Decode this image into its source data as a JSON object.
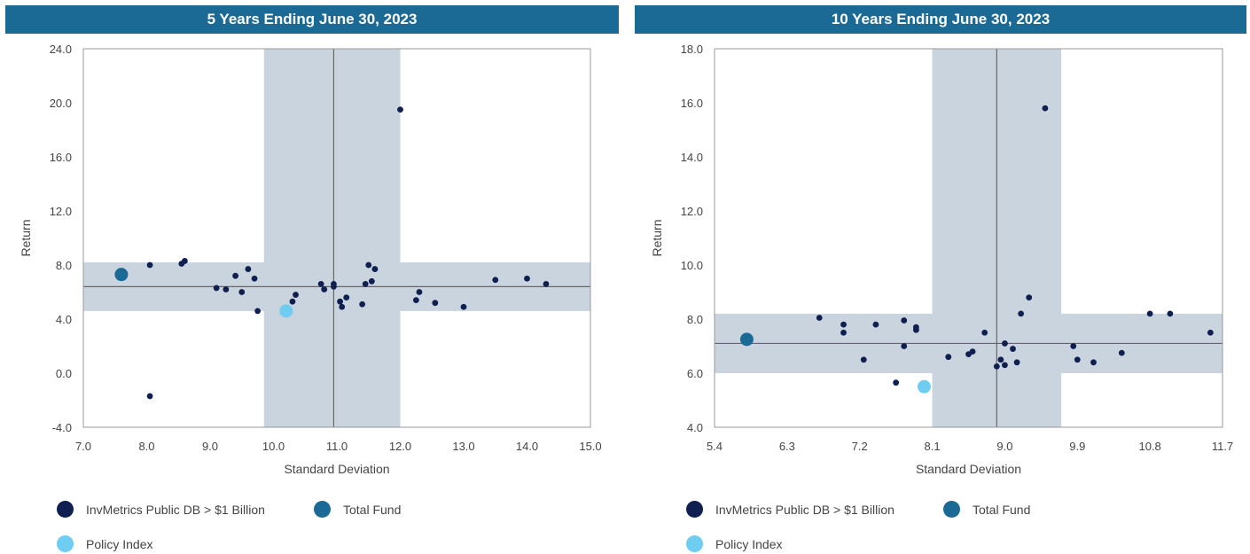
{
  "legend": {
    "peer": {
      "label": "InvMetrics Public DB > $1 Billion",
      "color": "#0f1f4f"
    },
    "total_fund": {
      "label": "Total Fund",
      "color": "#1b6a96"
    },
    "policy": {
      "label": "Policy Index",
      "color": "#6fcdf2"
    }
  },
  "colors": {
    "band": "#c9d4df",
    "line": "#666666",
    "frame": "#999999",
    "banner": "#1b6a96"
  },
  "chart_data": [
    {
      "type": "scatter",
      "title": "5 Years Ending June 30, 2023",
      "xlabel": "Standard Deviation",
      "ylabel": "Return",
      "xlim": [
        7.0,
        15.0
      ],
      "ylim": [
        -4.0,
        24.0
      ],
      "xticks": [
        "7.0",
        "8.0",
        "9.0",
        "10.0",
        "11.0",
        "12.0",
        "13.0",
        "14.0",
        "15.0"
      ],
      "yticks": [
        "-4.0",
        "0.0",
        "4.0",
        "8.0",
        "12.0",
        "16.0",
        "20.0",
        "24.0"
      ],
      "median_x": 10.95,
      "median_y": 6.4,
      "band_x": [
        9.85,
        12.0
      ],
      "band_y": [
        4.6,
        8.2
      ],
      "series": [
        {
          "name": "InvMetrics Public DB > $1 Billion",
          "points": [
            [
              8.05,
              8.0
            ],
            [
              8.05,
              -1.7
            ],
            [
              8.55,
              8.1
            ],
            [
              8.6,
              8.3
            ],
            [
              9.1,
              6.3
            ],
            [
              9.25,
              6.2
            ],
            [
              9.4,
              7.2
            ],
            [
              9.5,
              6.0
            ],
            [
              9.6,
              7.7
            ],
            [
              9.7,
              7.0
            ],
            [
              9.75,
              4.6
            ],
            [
              10.3,
              5.3
            ],
            [
              10.35,
              5.8
            ],
            [
              10.75,
              6.6
            ],
            [
              10.8,
              6.2
            ],
            [
              10.95,
              6.4
            ],
            [
              10.95,
              6.6
            ],
            [
              11.05,
              5.3
            ],
            [
              11.08,
              4.9
            ],
            [
              11.15,
              5.6
            ],
            [
              11.4,
              5.1
            ],
            [
              11.45,
              6.6
            ],
            [
              11.5,
              8.0
            ],
            [
              11.55,
              6.8
            ],
            [
              11.6,
              7.7
            ],
            [
              12.0,
              19.5
            ],
            [
              12.25,
              5.4
            ],
            [
              12.3,
              6.0
            ],
            [
              12.55,
              5.2
            ],
            [
              13.0,
              4.9
            ],
            [
              13.5,
              6.9
            ],
            [
              14.0,
              7.0
            ],
            [
              14.3,
              6.6
            ]
          ]
        },
        {
          "name": "Total Fund",
          "points": [
            [
              7.6,
              7.3
            ]
          ]
        },
        {
          "name": "Policy Index",
          "points": [
            [
              10.2,
              4.6
            ]
          ]
        }
      ]
    },
    {
      "type": "scatter",
      "title": "10 Years Ending June 30, 2023",
      "xlabel": "Standard Deviation",
      "ylabel": "Return",
      "xlim": [
        5.4,
        11.7
      ],
      "ylim": [
        4.0,
        18.0
      ],
      "xticks": [
        "5.4",
        "6.3",
        "7.2",
        "8.1",
        "9.0",
        "9.9",
        "10.8",
        "11.7"
      ],
      "yticks": [
        "4.0",
        "6.0",
        "8.0",
        "10.0",
        "12.0",
        "14.0",
        "16.0",
        "18.0"
      ],
      "median_x": 8.9,
      "median_y": 7.1,
      "band_x": [
        8.1,
        9.7
      ],
      "band_y": [
        6.0,
        8.2
      ],
      "series": [
        {
          "name": "InvMetrics Public DB > $1 Billion",
          "points": [
            [
              6.7,
              8.05
            ],
            [
              7.0,
              7.8
            ],
            [
              7.0,
              7.5
            ],
            [
              7.25,
              6.5
            ],
            [
              7.4,
              7.8
            ],
            [
              7.65,
              5.65
            ],
            [
              7.75,
              7.0
            ],
            [
              7.75,
              7.95
            ],
            [
              7.9,
              7.6
            ],
            [
              7.9,
              7.7
            ],
            [
              8.3,
              6.6
            ],
            [
              8.55,
              6.7
            ],
            [
              8.6,
              6.8
            ],
            [
              8.75,
              7.5
            ],
            [
              8.9,
              6.25
            ],
            [
              8.95,
              6.5
            ],
            [
              9.0,
              6.3
            ],
            [
              9.0,
              7.1
            ],
            [
              9.1,
              6.9
            ],
            [
              9.15,
              6.4
            ],
            [
              9.2,
              8.2
            ],
            [
              9.3,
              8.8
            ],
            [
              9.5,
              15.8
            ],
            [
              9.85,
              7.0
            ],
            [
              9.9,
              6.5
            ],
            [
              10.1,
              6.4
            ],
            [
              10.45,
              6.75
            ],
            [
              10.8,
              8.2
            ],
            [
              11.05,
              8.2
            ],
            [
              11.55,
              7.5
            ]
          ]
        },
        {
          "name": "Total Fund",
          "points": [
            [
              5.8,
              7.25
            ]
          ]
        },
        {
          "name": "Policy Index",
          "points": [
            [
              8.0,
              5.5
            ]
          ]
        }
      ]
    }
  ]
}
